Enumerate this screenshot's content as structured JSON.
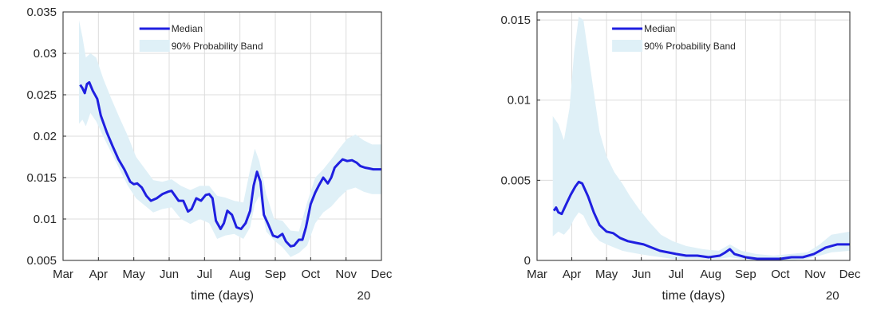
{
  "colors": {
    "median": "#1f1fe0",
    "band": "#dff0f7",
    "grid": "#dcdcdc",
    "axis": "#262626"
  },
  "chart_data": [
    {
      "type": "line",
      "xlabel": "time (days)",
      "year_label": "20",
      "x_ticks": [
        "Mar",
        "Apr",
        "May",
        "Jun",
        "Jul",
        "Aug",
        "Sep",
        "Oct",
        "Nov",
        "Dec"
      ],
      "ylim": [
        0.005,
        0.035
      ],
      "y_ticks": [
        "0.005",
        "0.01",
        "0.015",
        "0.02",
        "0.025",
        "0.03",
        "0.035"
      ],
      "grid": true,
      "legend": {
        "position": "top-center",
        "entries": [
          "Median",
          "90% Probability Band"
        ]
      },
      "series": [
        {
          "name": "Median",
          "x": [
            "Mar 16",
            "Mar 18",
            "Mar 20",
            "Mar 22",
            "Mar 24",
            "Mar 27",
            "Mar 31",
            "Apr 3",
            "Apr 8",
            "Apr 13",
            "Apr 18",
            "Apr 23",
            "Apr 28",
            "May 1",
            "May 4",
            "May 8",
            "May 12",
            "May 16",
            "May 21",
            "May 26",
            "May 31",
            "Jun 3",
            "Jun 6",
            "Jun 9",
            "Jun 13",
            "Jun 17",
            "Jun 20",
            "Jun 24",
            "Jun 28",
            "Jul 2",
            "Jul 5",
            "Jul 8",
            "Jul 11",
            "Jul 15",
            "Jul 18",
            "Jul 21",
            "Jul 25",
            "Jul 29",
            "Aug 2",
            "Aug 6",
            "Aug 10",
            "Aug 13",
            "Aug 16",
            "Aug 19",
            "Aug 22",
            "Aug 26",
            "Aug 30",
            "Sep 3",
            "Sep 7",
            "Sep 10",
            "Sep 14",
            "Sep 17",
            "Sep 21",
            "Sep 24",
            "Sep 27",
            "Oct 1",
            "Oct 5",
            "Oct 8",
            "Oct 12",
            "Oct 16",
            "Oct 19",
            "Oct 22",
            "Oct 26",
            "Oct 29",
            "Nov 2",
            "Nov 6",
            "Nov 10",
            "Nov 13",
            "Nov 17",
            "Nov 21",
            "Nov 24",
            "Nov 28",
            "Dec 1"
          ],
          "values": [
            0.0262,
            0.0258,
            0.0252,
            0.0263,
            0.0265,
            0.0255,
            0.0245,
            0.0225,
            0.0205,
            0.0188,
            0.0172,
            0.016,
            0.0145,
            0.0142,
            0.0143,
            0.0138,
            0.0128,
            0.0122,
            0.0125,
            0.013,
            0.0133,
            0.0134,
            0.0128,
            0.0122,
            0.0122,
            0.0109,
            0.0112,
            0.0125,
            0.0122,
            0.0129,
            0.013,
            0.0125,
            0.0098,
            0.0088,
            0.0095,
            0.011,
            0.0105,
            0.009,
            0.0088,
            0.0095,
            0.011,
            0.014,
            0.0157,
            0.0145,
            0.0105,
            0.0093,
            0.008,
            0.0078,
            0.0082,
            0.0073,
            0.0067,
            0.0068,
            0.0075,
            0.0075,
            0.009,
            0.0118,
            0.0132,
            0.014,
            0.015,
            0.0143,
            0.015,
            0.0162,
            0.0168,
            0.0172,
            0.017,
            0.0171,
            0.0168,
            0.0164,
            0.0162,
            0.0161,
            0.016,
            0.016,
            0.016
          ]
        },
        {
          "name": "90% Probability Band",
          "x": [
            "Mar 15",
            "Mar 18",
            "Mar 21",
            "Mar 25",
            "Mar 30",
            "Apr 5",
            "Apr 12",
            "Apr 19",
            "Apr 26",
            "May 3",
            "May 10",
            "May 18",
            "May 26",
            "Jun 3",
            "Jun 11",
            "Jun 19",
            "Jun 27",
            "Jul 5",
            "Jul 12",
            "Jul 19",
            "Jul 27",
            "Aug 4",
            "Aug 10",
            "Aug 14",
            "Aug 18",
            "Aug 24",
            "Aug 31",
            "Sep 7",
            "Sep 14",
            "Sep 21",
            "Sep 28",
            "Oct 5",
            "Oct 12",
            "Oct 19",
            "Oct 26",
            "Nov 2",
            "Nov 9",
            "Nov 16",
            "Nov 23",
            "Dec 1"
          ],
          "upper": [
            0.034,
            0.032,
            0.0295,
            0.03,
            0.0295,
            0.027,
            0.0245,
            0.0222,
            0.02,
            0.0175,
            0.0162,
            0.0147,
            0.0145,
            0.0148,
            0.014,
            0.0135,
            0.014,
            0.014,
            0.0128,
            0.0126,
            0.0122,
            0.012,
            0.016,
            0.0185,
            0.017,
            0.013,
            0.01,
            0.0098,
            0.0086,
            0.0085,
            0.012,
            0.015,
            0.016,
            0.0172,
            0.0185,
            0.0197,
            0.0202,
            0.0195,
            0.019,
            0.019
          ],
          "lower": [
            0.0215,
            0.022,
            0.0212,
            0.0228,
            0.0218,
            0.02,
            0.018,
            0.016,
            0.014,
            0.0125,
            0.0117,
            0.0108,
            0.0112,
            0.0114,
            0.01,
            0.0094,
            0.01,
            0.0095,
            0.0076,
            0.008,
            0.0082,
            0.0076,
            0.009,
            0.0118,
            0.0128,
            0.0085,
            0.0074,
            0.0066,
            0.0054,
            0.0059,
            0.0068,
            0.0095,
            0.0108,
            0.0115,
            0.0126,
            0.0135,
            0.0138,
            0.0133,
            0.013,
            0.013
          ]
        }
      ]
    },
    {
      "type": "line",
      "xlabel": "time (days)",
      "year_label": "20",
      "x_ticks": [
        "Mar",
        "Apr",
        "May",
        "Jun",
        "Jul",
        "Aug",
        "Sep",
        "Oct",
        "Nov",
        "Dec"
      ],
      "ylim": [
        0,
        0.0155
      ],
      "y_ticks": [
        "0",
        "0.005",
        "0.01",
        "0.015"
      ],
      "grid": true,
      "legend": {
        "position": "top-center",
        "entries": [
          "Median",
          "90% Probability Band"
        ]
      },
      "series": [
        {
          "name": "Median",
          "x": [
            "Mar 16",
            "Mar 18",
            "Mar 20",
            "Mar 23",
            "Mar 27",
            "Mar 31",
            "Apr 4",
            "Apr 7",
            "Apr 10",
            "Apr 15",
            "Apr 20",
            "Apr 25",
            "May 1",
            "May 7",
            "May 13",
            "May 20",
            "May 27",
            "Jun 3",
            "Jun 10",
            "Jun 17",
            "Jun 24",
            "Jul 1",
            "Jul 10",
            "Jul 20",
            "Jul 30",
            "Aug 9",
            "Aug 14",
            "Aug 18",
            "Aug 22",
            "Sep 1",
            "Sep 11",
            "Sep 21",
            "Oct 1",
            "Oct 11",
            "Oct 21",
            "Oct 31",
            "Nov 10",
            "Nov 20",
            "Dec 1"
          ],
          "values": [
            0.0031,
            0.0033,
            0.003,
            0.0029,
            0.0035,
            0.0041,
            0.0046,
            0.0049,
            0.0048,
            0.004,
            0.003,
            0.0022,
            0.0018,
            0.0017,
            0.0014,
            0.0012,
            0.0011,
            0.001,
            0.0008,
            0.0006,
            0.0005,
            0.0004,
            0.0003,
            0.0003,
            0.0002,
            0.0003,
            0.0005,
            0.0007,
            0.0004,
            0.0002,
            0.0001,
            0.0001,
            0.0001,
            0.0002,
            0.0002,
            0.0004,
            0.0008,
            0.001,
            0.001
          ]
        },
        {
          "name": "90% Probability Band",
          "x": [
            "Mar 15",
            "Mar 20",
            "Mar 25",
            "Mar 30",
            "Apr 3",
            "Apr 7",
            "Apr 11",
            "Apr 15",
            "Apr 20",
            "Apr 25",
            "May 1",
            "May 8",
            "May 15",
            "May 22",
            "May 30",
            "Jun 8",
            "Jun 18",
            "Jun 28",
            "Jul 10",
            "Jul 25",
            "Aug 8",
            "Aug 18",
            "Aug 28",
            "Sep 10",
            "Sep 25",
            "Oct 10",
            "Oct 25",
            "Nov 5",
            "Nov 15",
            "Dec 1"
          ],
          "upper": [
            0.009,
            0.0085,
            0.0075,
            0.0095,
            0.013,
            0.0152,
            0.015,
            0.013,
            0.0105,
            0.008,
            0.0065,
            0.0055,
            0.0048,
            0.004,
            0.0032,
            0.0024,
            0.0016,
            0.0012,
            0.0009,
            0.0007,
            0.0006,
            0.001,
            0.0006,
            0.0004,
            0.0003,
            0.0004,
            0.0005,
            0.001,
            0.0016,
            0.0018
          ],
          "lower": [
            0.0015,
            0.0018,
            0.0016,
            0.002,
            0.0026,
            0.003,
            0.0028,
            0.0022,
            0.0016,
            0.0012,
            0.001,
            0.0008,
            0.0006,
            0.0005,
            0.0004,
            0.0003,
            0.0002,
            0.0001,
            0.0001,
            0.0001,
            0.0001,
            0.0002,
            0.0001,
            0.0,
            0.0,
            0.0,
            0.0001,
            0.0003,
            0.0005,
            0.0006
          ]
        }
      ]
    }
  ]
}
